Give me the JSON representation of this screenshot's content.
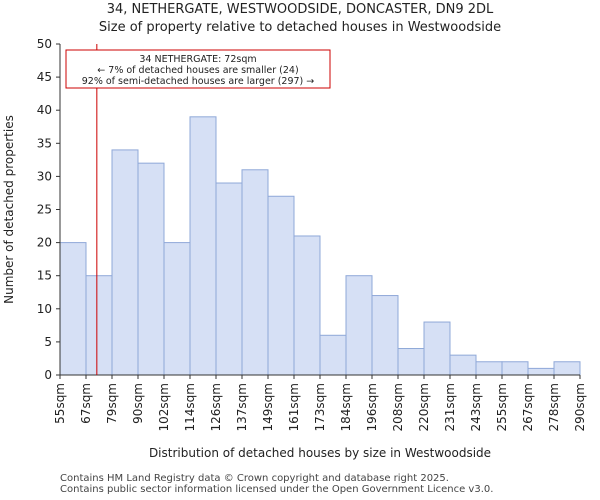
{
  "header": {
    "title": "34, NETHERGATE, WESTWOODSIDE, DONCASTER, DN9 2DL",
    "subtitle": "Size of property relative to detached houses in Westwoodside"
  },
  "footer": {
    "line1": "Contains HM Land Registry data © Crown copyright and database right 2025.",
    "line2": "Contains public sector information licensed under the Open Government Licence v3.0."
  },
  "chart_data": {
    "type": "bar",
    "title": "34, NETHERGATE, WESTWOODSIDE, DONCASTER, DN9 2DL",
    "subtitle": "Size of property relative to detached houses in Westwoodside",
    "xlabel": "Distribution of detached houses by size in Westwoodside",
    "ylabel": "Number of detached properties",
    "bin_edges": [
      "55sqm",
      "67sqm",
      "79sqm",
      "90sqm",
      "102sqm",
      "114sqm",
      "126sqm",
      "137sqm",
      "149sqm",
      "161sqm",
      "173sqm",
      "184sqm",
      "196sqm",
      "208sqm",
      "220sqm",
      "231sqm",
      "243sqm",
      "255sqm",
      "267sqm",
      "278sqm",
      "290sqm"
    ],
    "values": [
      20,
      15,
      34,
      32,
      20,
      39,
      29,
      31,
      27,
      21,
      6,
      15,
      12,
      4,
      8,
      3,
      2,
      2,
      1,
      2
    ],
    "ylim": [
      0,
      50
    ],
    "yticks": [
      0,
      5,
      10,
      15,
      20,
      25,
      30,
      35,
      40,
      45,
      50
    ],
    "grid": false,
    "bar_color": "#d6e0f5",
    "bar_edge_color": "#8fa8d8",
    "marker": {
      "value_sqm": 72,
      "color": "#cc0000",
      "label_lines": [
        "34 NETHERGATE: 72sqm",
        "← 7% of detached houses are smaller (24)",
        "92% of semi-detached houses are larger (297) →"
      ]
    }
  }
}
